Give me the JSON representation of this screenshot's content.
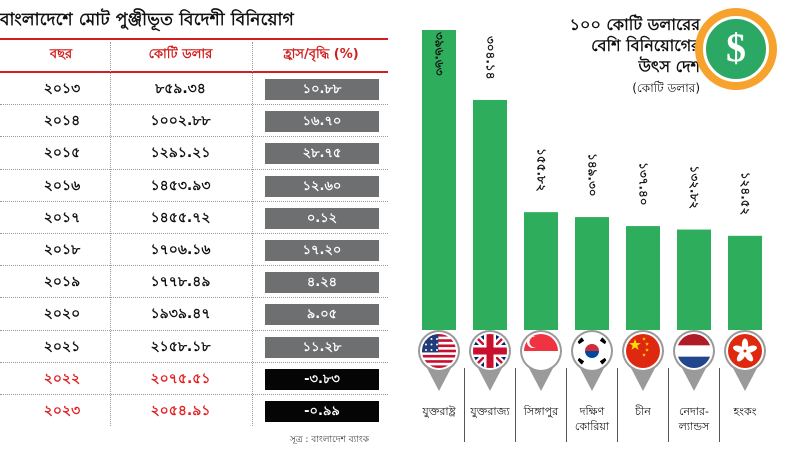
{
  "table": {
    "title": "বাংলাদেশে মোট পুঞ্জীভূত বিদেশী বিনিয়োগ",
    "headers": {
      "year": "বছর",
      "value": "কোটি ডলার",
      "change": "হ্রাস/বৃদ্ধি (%)"
    },
    "rows": [
      {
        "year": "২০১৩",
        "value": "৮৫৯.৩৪",
        "change": "১০.৮৮",
        "negative": false
      },
      {
        "year": "২০১৪",
        "value": "১০০২.৮৮",
        "change": "১৬.৭০",
        "negative": false
      },
      {
        "year": "২০১৫",
        "value": "১২৯১.২১",
        "change": "২৮.৭৫",
        "negative": false
      },
      {
        "year": "২০১৬",
        "value": "১৪৫৩.৯৩",
        "change": "১২.৬০",
        "negative": false
      },
      {
        "year": "২০১৭",
        "value": "১৪৫৫.৭২",
        "change": "০.১২",
        "negative": false
      },
      {
        "year": "২০১৮",
        "value": "১৭০৬.১৬",
        "change": "১৭.২০",
        "negative": false
      },
      {
        "year": "২০১৯",
        "value": "১৭৭৮.৪৯",
        "change": "৪.২৪",
        "negative": false
      },
      {
        "year": "২০২০",
        "value": "১৯৩৯.৪৭",
        "change": "৯.০৫",
        "negative": false
      },
      {
        "year": "২০২১",
        "value": "২১৫৮.১৮",
        "change": "১১.২৮",
        "negative": false
      },
      {
        "year": "২০২২",
        "value": "২০৭৫.৫১",
        "change": "-৩.৮৩",
        "negative": true
      },
      {
        "year": "২০২৩",
        "value": "২০৫৪.৯১",
        "change": "-০.৯৯",
        "negative": true
      }
    ],
    "source": "সূত্র : বাংলাদেশ ব্যাংক"
  },
  "chart_title": {
    "lines": [
      "১০০ কোটি ডলারের",
      "বেশি বিনিয়োগের",
      "উৎস দেশ"
    ],
    "unit": "(কোটি ডলার)"
  },
  "dollar_symbol": "$",
  "colors": {
    "bar": "#2eae5d",
    "pin": "#9a9a9a",
    "badge_outer": "#f6a22d",
    "badge_inner": "#2aa864",
    "table_accent": "#d11f1f",
    "negative_text": "#e32022",
    "positive_change_bg": "#6d6f71",
    "negative_change_bg": "#050505"
  },
  "chart_data": {
    "type": "bar",
    "title": "১০০ কোটি ডলারের বেশি বিনিয়োগের উৎস দেশ",
    "ylabel": "কোটি ডলার",
    "categories": [
      "যুক্তরাষ্ট্র",
      "যুক্তরাজ্য",
      "সিঙ্গাপুর",
      "দক্ষিণ কোরিয়া",
      "চীন",
      "নেদারল্যান্ডস",
      "হংকং"
    ],
    "category_lines": [
      [
        "যুক্তরাষ্ট্র"
      ],
      [
        "যুক্তরাজ্য"
      ],
      [
        "সিঙ্গাপুর"
      ],
      [
        "দক্ষিণ",
        "কোরিয়া"
      ],
      [
        "চীন"
      ],
      [
        "নেদার-",
        "ল্যান্ডস"
      ],
      [
        "হংকং"
      ]
    ],
    "values": [
      396.63,
      304.14,
      155.82,
      149.3,
      137.4,
      132.82,
      124.52
    ],
    "value_labels": [
      "৩৯৬.৬৩",
      "৩০৪.১৪",
      "১৫৫.৮২",
      "১৪৯.৩০",
      "১৩৭.৪০",
      "১৩২.৮২",
      "১২৪.৫২"
    ],
    "flags": [
      "flag-usa-icon",
      "flag-uk-icon",
      "flag-singapore-icon",
      "flag-south-korea-icon",
      "flag-china-icon",
      "flag-netherlands-icon",
      "flag-hong-kong-icon"
    ],
    "ylim": [
      0,
      396.63
    ]
  }
}
